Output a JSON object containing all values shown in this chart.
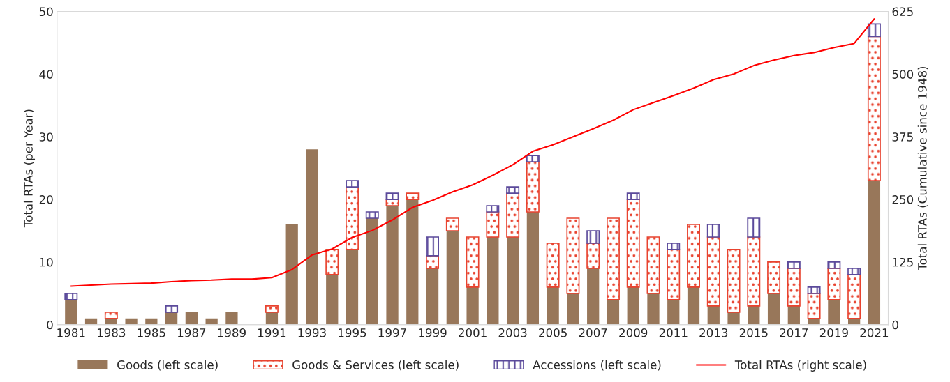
{
  "chart_data": {
    "type": "bar",
    "stacked": true,
    "categories": [
      "1981",
      null,
      "1983",
      null,
      "1985",
      null,
      "1987",
      null,
      "1989",
      null,
      "1991",
      null,
      "1993",
      null,
      "1995",
      null,
      "1997",
      null,
      "1999",
      null,
      "2001",
      null,
      "2003",
      null,
      "2005",
      null,
      "2007",
      null,
      "2009",
      null,
      "2011",
      null,
      "2013",
      null,
      "2015",
      null,
      "2017",
      null,
      "2019",
      null,
      "2021"
    ],
    "series": [
      {
        "name": "Goods (left scale)",
        "color": "#98775a",
        "values": [
          4,
          1,
          1,
          1,
          1,
          2,
          2,
          1,
          2,
          0,
          2,
          16,
          28,
          8,
          12,
          17,
          19,
          20,
          9,
          15,
          6,
          14,
          14,
          18,
          6,
          5,
          9,
          4,
          6,
          5,
          4,
          6,
          3,
          2,
          3,
          5,
          3,
          1,
          4,
          1,
          23
        ]
      },
      {
        "name": "Goods & Services (left scale)",
        "color": "#e8432f",
        "values": [
          0,
          0,
          1,
          0,
          0,
          0,
          0,
          0,
          0,
          0,
          1,
          0,
          0,
          4,
          10,
          0,
          1,
          1,
          2,
          2,
          8,
          4,
          7,
          8,
          7,
          12,
          4,
          13,
          14,
          9,
          8,
          10,
          11,
          10,
          11,
          5,
          6,
          4,
          5,
          7,
          23
        ]
      },
      {
        "name": "Accessions (left scale)",
        "color": "#5b4a9b",
        "values": [
          1,
          0,
          0,
          0,
          0,
          1,
          0,
          0,
          0,
          0,
          0,
          0,
          0,
          0,
          1,
          1,
          1,
          0,
          3,
          0,
          0,
          1,
          1,
          1,
          0,
          0,
          2,
          0,
          1,
          0,
          1,
          0,
          2,
          0,
          3,
          0,
          1,
          1,
          1,
          1,
          2
        ]
      },
      {
        "name": "Total RTAs (right scale)",
        "type": "line",
        "axis": "y2",
        "color": "#ff0000",
        "values": [
          77,
          79,
          81,
          82,
          83,
          86,
          88,
          89,
          91,
          91,
          94,
          110,
          139,
          151,
          174,
          188,
          209,
          234,
          248,
          265,
          279,
          298,
          319,
          346,
          359,
          375,
          391,
          408,
          429,
          443,
          457,
          472,
          489,
          500,
          517,
          528,
          537,
          543,
          553,
          561,
          610
        ]
      }
    ],
    "ylabel": "Total RTAs (per Year)",
    "y2label": "Total RTAs (Cumulative since 1948)",
    "ylim": [
      0,
      50
    ],
    "yticks": [
      0,
      10,
      20,
      30,
      40,
      50
    ],
    "y2lim": [
      0,
      625
    ],
    "y2ticks": [
      0,
      125,
      250,
      375,
      500,
      625
    ],
    "legend": "bottom",
    "grid": false
  }
}
